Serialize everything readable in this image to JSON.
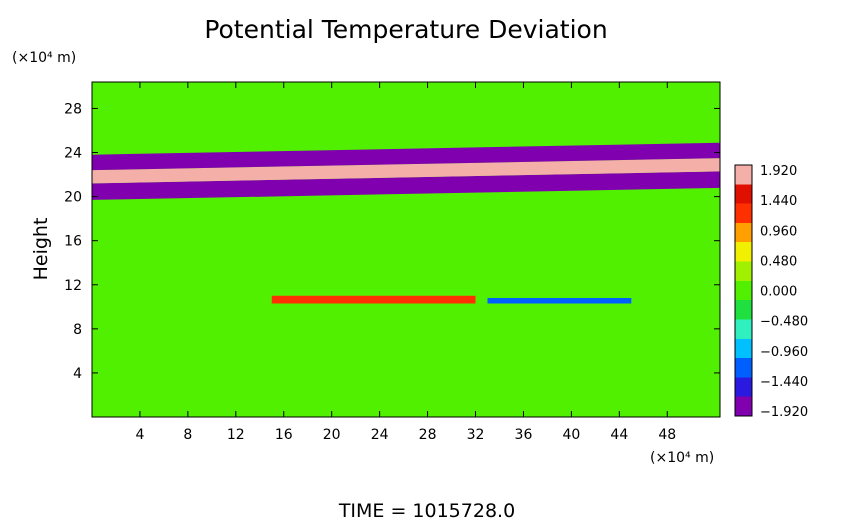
{
  "chart_data": {
    "type": "heatmap",
    "title": "Potential Temperature Deviation",
    "ylabel": "Height",
    "xunit": "(×10⁴ m)",
    "yunit": "(×10⁴ m)",
    "xlim": [
      0,
      52.4
    ],
    "ylim": [
      0,
      30.4
    ],
    "xticks": [
      4,
      8,
      12,
      16,
      20,
      24,
      28,
      32,
      36,
      40,
      44,
      48
    ],
    "yticks": [
      4,
      8,
      12,
      16,
      20,
      24,
      28
    ],
    "colorbar": {
      "labels": [
        "1.920",
        "1.440",
        "0.960",
        "0.480",
        "0.000",
        "−0.480",
        "−0.960",
        "−1.440",
        "−1.920"
      ],
      "range": [
        -1.92,
        1.92
      ],
      "colors": [
        "#8000b0",
        "#2a1ae0",
        "#0060ff",
        "#00c0ff",
        "#30f0c0",
        "#20e040",
        "#50f000",
        "#a0f000",
        "#f0f000",
        "#ffa000",
        "#ff3000",
        "#e01000",
        "#f4b0a8"
      ]
    },
    "background_value": 0.1,
    "features": [
      {
        "name": "upper negative band",
        "x0": 0,
        "x1": 52.4,
        "y0": 19.7,
        "y1": 21.2,
        "value": -1.92
      },
      {
        "name": "upper positive band",
        "x0": 0,
        "x1": 52.4,
        "y0": 21.2,
        "y1": 22.4,
        "value": 1.92
      },
      {
        "name": "upper negative band 2",
        "x0": 0,
        "x1": 52.4,
        "y0": 22.4,
        "y1": 23.8,
        "value": -1.7
      },
      {
        "name": "lower warm layer",
        "x0": 15,
        "x1": 32,
        "y0": 10.3,
        "y1": 11.0,
        "value": 1.1
      },
      {
        "name": "lower cool layer",
        "x0": 33,
        "x1": 45,
        "y0": 10.3,
        "y1": 10.8,
        "value": -1.3
      }
    ],
    "annotation": "TIME  =  1015728.0"
  }
}
